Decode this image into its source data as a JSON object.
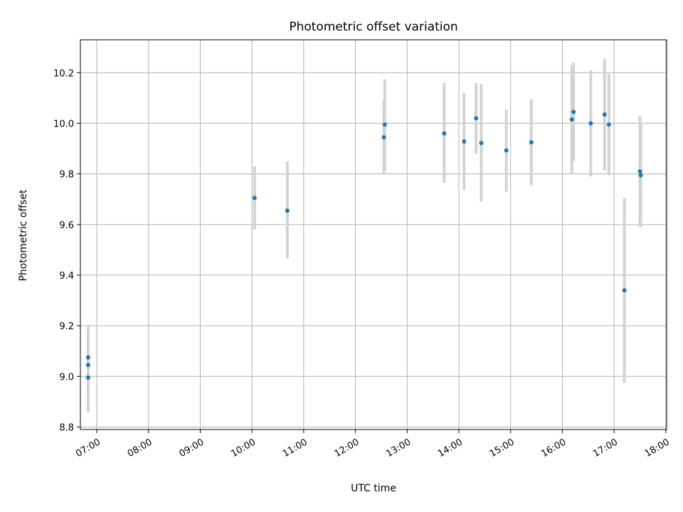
{
  "chart_data": {
    "type": "scatter",
    "title": "Photometric offset variation",
    "xlabel": "UTC time",
    "ylabel": "Photometric offset",
    "x_tick_labels": [
      "07:00",
      "08:00",
      "09:00",
      "10:00",
      "11:00",
      "12:00",
      "13:00",
      "14:00",
      "15:00",
      "16:00",
      "17:00",
      "18:00"
    ],
    "y_tick_labels": [
      "8.8",
      "9.0",
      "9.2",
      "9.4",
      "9.6",
      "9.8",
      "10.0",
      "10.2"
    ],
    "xlim": [
      "06:41",
      "18:01"
    ],
    "ylim": [
      8.79,
      10.33
    ],
    "grid": true,
    "marker_color": "#1f77b4",
    "errorbar_color": "#d3d3d3",
    "series": [
      {
        "points": [
          {
            "x": "06:50",
            "y": 9.075,
            "err_low": 8.94,
            "err_high": 9.2
          },
          {
            "x": "06:50",
            "y": 9.045,
            "err_low": 8.86,
            "err_high": 9.2
          },
          {
            "x": "06:50",
            "y": 8.995,
            "err_low": 8.86,
            "err_high": 9.16
          },
          {
            "x": "10:03",
            "y": 9.705,
            "err_low": 9.58,
            "err_high": 9.83
          },
          {
            "x": "10:41",
            "y": 9.655,
            "err_low": 9.465,
            "err_high": 9.85
          },
          {
            "x": "12:34",
            "y": 9.995,
            "err_low": 9.815,
            "err_high": 10.175
          },
          {
            "x": "12:33",
            "y": 9.945,
            "err_low": 9.8,
            "err_high": 10.09
          },
          {
            "x": "13:43",
            "y": 9.96,
            "err_low": 9.765,
            "err_high": 10.16
          },
          {
            "x": "14:06",
            "y": 9.928,
            "err_low": 9.735,
            "err_high": 10.12
          },
          {
            "x": "14:20",
            "y": 10.02,
            "err_low": 9.88,
            "err_high": 10.16
          },
          {
            "x": "14:26",
            "y": 9.922,
            "err_low": 9.69,
            "err_high": 10.155
          },
          {
            "x": "14:55",
            "y": 9.893,
            "err_low": 9.73,
            "err_high": 10.055
          },
          {
            "x": "15:24",
            "y": 9.925,
            "err_low": 9.755,
            "err_high": 10.095
          },
          {
            "x": "16:11",
            "y": 10.015,
            "err_low": 9.8,
            "err_high": 10.23
          },
          {
            "x": "16:13",
            "y": 10.045,
            "err_low": 9.85,
            "err_high": 10.24
          },
          {
            "x": "16:33",
            "y": 10.0,
            "err_low": 9.79,
            "err_high": 10.21
          },
          {
            "x": "16:49",
            "y": 10.035,
            "err_low": 9.815,
            "err_high": 10.255
          },
          {
            "x": "16:54",
            "y": 9.995,
            "err_low": 9.795,
            "err_high": 10.195
          },
          {
            "x": "17:12",
            "y": 9.34,
            "err_low": 8.975,
            "err_high": 9.705
          },
          {
            "x": "17:30",
            "y": 9.81,
            "err_low": 9.59,
            "err_high": 10.03
          },
          {
            "x": "17:31",
            "y": 9.795,
            "err_low": 9.59,
            "err_high": 10.0
          }
        ]
      }
    ]
  }
}
